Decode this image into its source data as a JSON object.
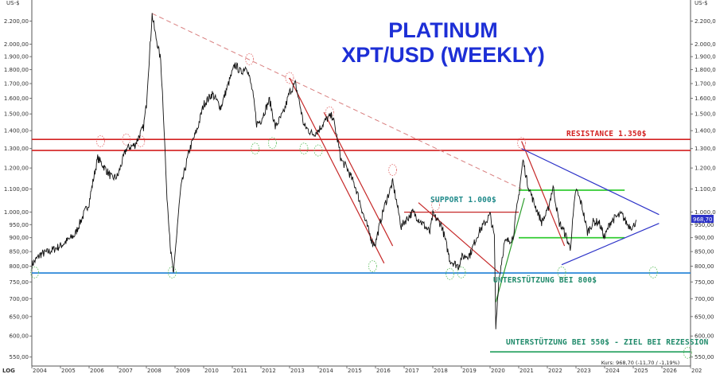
{
  "chart_data": {
    "type": "line",
    "title": "PLATINUM",
    "subtitle": "XPT/USD (WEEKLY)",
    "scale": "log",
    "unit_left": "US-$",
    "unit_right": "US-$",
    "corner_label": "LOG",
    "ylim": [
      530,
      2400
    ],
    "xlim": [
      2004.0,
      2027.0
    ],
    "grid": false,
    "y_ticks": [
      "550,00",
      "600,00",
      "650,00",
      "700,00",
      "750,00",
      "800,00",
      "850,00",
      "900,00",
      "950,00",
      "1.000,00",
      "1.100,00",
      "1.200,00",
      "1.300,00",
      "1.400,00",
      "1.500,00",
      "1.600,00",
      "1.700,00",
      "1.800,00",
      "1.900,00",
      "2.000,00",
      "2.200,00"
    ],
    "x_ticks": [
      "2004",
      "2005",
      "2006",
      "2007",
      "2008",
      "2009",
      "2010",
      "2011",
      "2012",
      "2013",
      "2014",
      "2015",
      "2016",
      "2017",
      "2018",
      "2019",
      "2020",
      "2021",
      "2022",
      "2023",
      "2024",
      "2025",
      "2026",
      "202"
    ],
    "current_price_label": "968,70",
    "footer": "Kurs: 968,70 (-11,70 / -1,19%)",
    "series": [
      {
        "x": [
          2004.0,
          2004.3,
          2004.6,
          2005.0,
          2005.5,
          2006.0,
          2006.3,
          2006.5,
          2006.8,
          2007.0,
          2007.3,
          2007.6,
          2007.9,
          2008.0,
          2008.15,
          2008.2,
          2008.3,
          2008.5,
          2008.7,
          2008.85,
          2008.95,
          2009.2,
          2009.5,
          2009.8,
          2010.0,
          2010.3,
          2010.6,
          2010.9,
          2011.1,
          2011.3,
          2011.5,
          2011.7,
          2011.85,
          2012.0,
          2012.3,
          2012.5,
          2012.8,
          2013.0,
          2013.2,
          2013.5,
          2013.8,
          2014.0,
          2014.3,
          2014.5,
          2014.8,
          2015.0,
          2015.3,
          2015.6,
          2015.9,
          2016.0,
          2016.3,
          2016.6,
          2016.9,
          2017.0,
          2017.3,
          2017.6,
          2017.9,
          2018.0,
          2018.3,
          2018.6,
          2018.9,
          2019.0,
          2019.3,
          2019.6,
          2019.9,
          2020.0,
          2020.15,
          2020.2,
          2020.3,
          2020.5,
          2020.8,
          2021.0,
          2021.15,
          2021.3,
          2021.5,
          2021.8,
          2022.0,
          2022.2,
          2022.4,
          2022.6,
          2022.8,
          2023.0,
          2023.2,
          2023.4,
          2023.6,
          2023.8,
          2024.0,
          2024.2,
          2024.4,
          2024.6,
          2024.8,
          2025.0,
          2025.1
        ],
        "y": [
          805,
          840,
          850,
          870,
          910,
          1040,
          1250,
          1210,
          1150,
          1160,
          1300,
          1320,
          1420,
          1560,
          2050,
          2260,
          2100,
          1870,
          1100,
          850,
          770,
          1100,
          1290,
          1420,
          1560,
          1630,
          1540,
          1720,
          1840,
          1780,
          1830,
          1650,
          1440,
          1460,
          1590,
          1420,
          1510,
          1640,
          1700,
          1430,
          1380,
          1400,
          1470,
          1490,
          1240,
          1200,
          1110,
          980,
          880,
          880,
          1020,
          1130,
          940,
          960,
          1000,
          960,
          920,
          990,
          950,
          820,
          800,
          830,
          840,
          920,
          970,
          990,
          900,
          620,
          750,
          880,
          900,
          1070,
          1240,
          1130,
          1050,
          960,
          1000,
          1110,
          960,
          920,
          860,
          1100,
          1030,
          920,
          960,
          960,
          900,
          960,
          980,
          990,
          950,
          940,
          968.7
        ]
      }
    ],
    "annotations": {
      "resistance": "RESISTANCE 1.350$",
      "support": "SUPPORT 1.000$",
      "unterstuetzung_800": "UNTERSTÜTZUNG BEI 800$",
      "unterstuetzung_550": "UNTERSTÜTZUNG BEI 550$ - ZIEL BEI REZESSION"
    },
    "levels": {
      "resistance_top": 1350,
      "resistance_bottom": 1290,
      "support": 1000,
      "support_800": 778,
      "support_550": 562,
      "green_box_top": 1095,
      "green_box_bottom": 900
    },
    "colors": {
      "price": "#111111",
      "resistance": "#d32121",
      "support_line": "#1c7fd6",
      "support_550": "#1f9e5a",
      "trend_red": "#c62828",
      "trend_dashed": "#d98080",
      "triangle": "#2d33c8",
      "green_box": "#33cc33",
      "title": "#1d2fd6",
      "tag_bg": "#2d33c8"
    }
  }
}
